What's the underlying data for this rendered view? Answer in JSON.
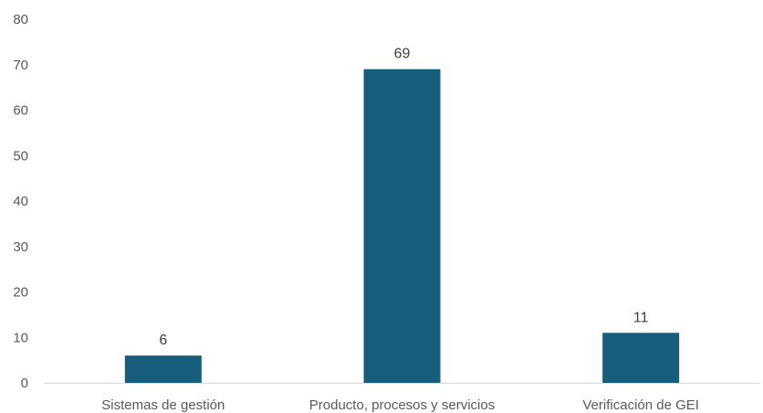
{
  "chart_data": {
    "type": "bar",
    "categories": [
      "Sistemas de gestión",
      "Producto, procesos y servicios",
      "Verificación de GEI"
    ],
    "values": [
      6,
      69,
      11
    ],
    "data_labels": [
      "6",
      "69",
      "11"
    ],
    "title": "",
    "xlabel": "",
    "ylabel": "",
    "ylim": [
      0,
      80
    ],
    "yticks": [
      0,
      10,
      20,
      30,
      40,
      50,
      60,
      70,
      80
    ],
    "ytick_labels": [
      "0",
      "10",
      "20",
      "30",
      "40",
      "50",
      "60",
      "70",
      "80"
    ],
    "grid": false,
    "legend": "none",
    "colors": {
      "bar": "#175E7C",
      "axis_line": "#D9D9D9",
      "tick_text": "#595959",
      "label_text": "#404040"
    }
  }
}
